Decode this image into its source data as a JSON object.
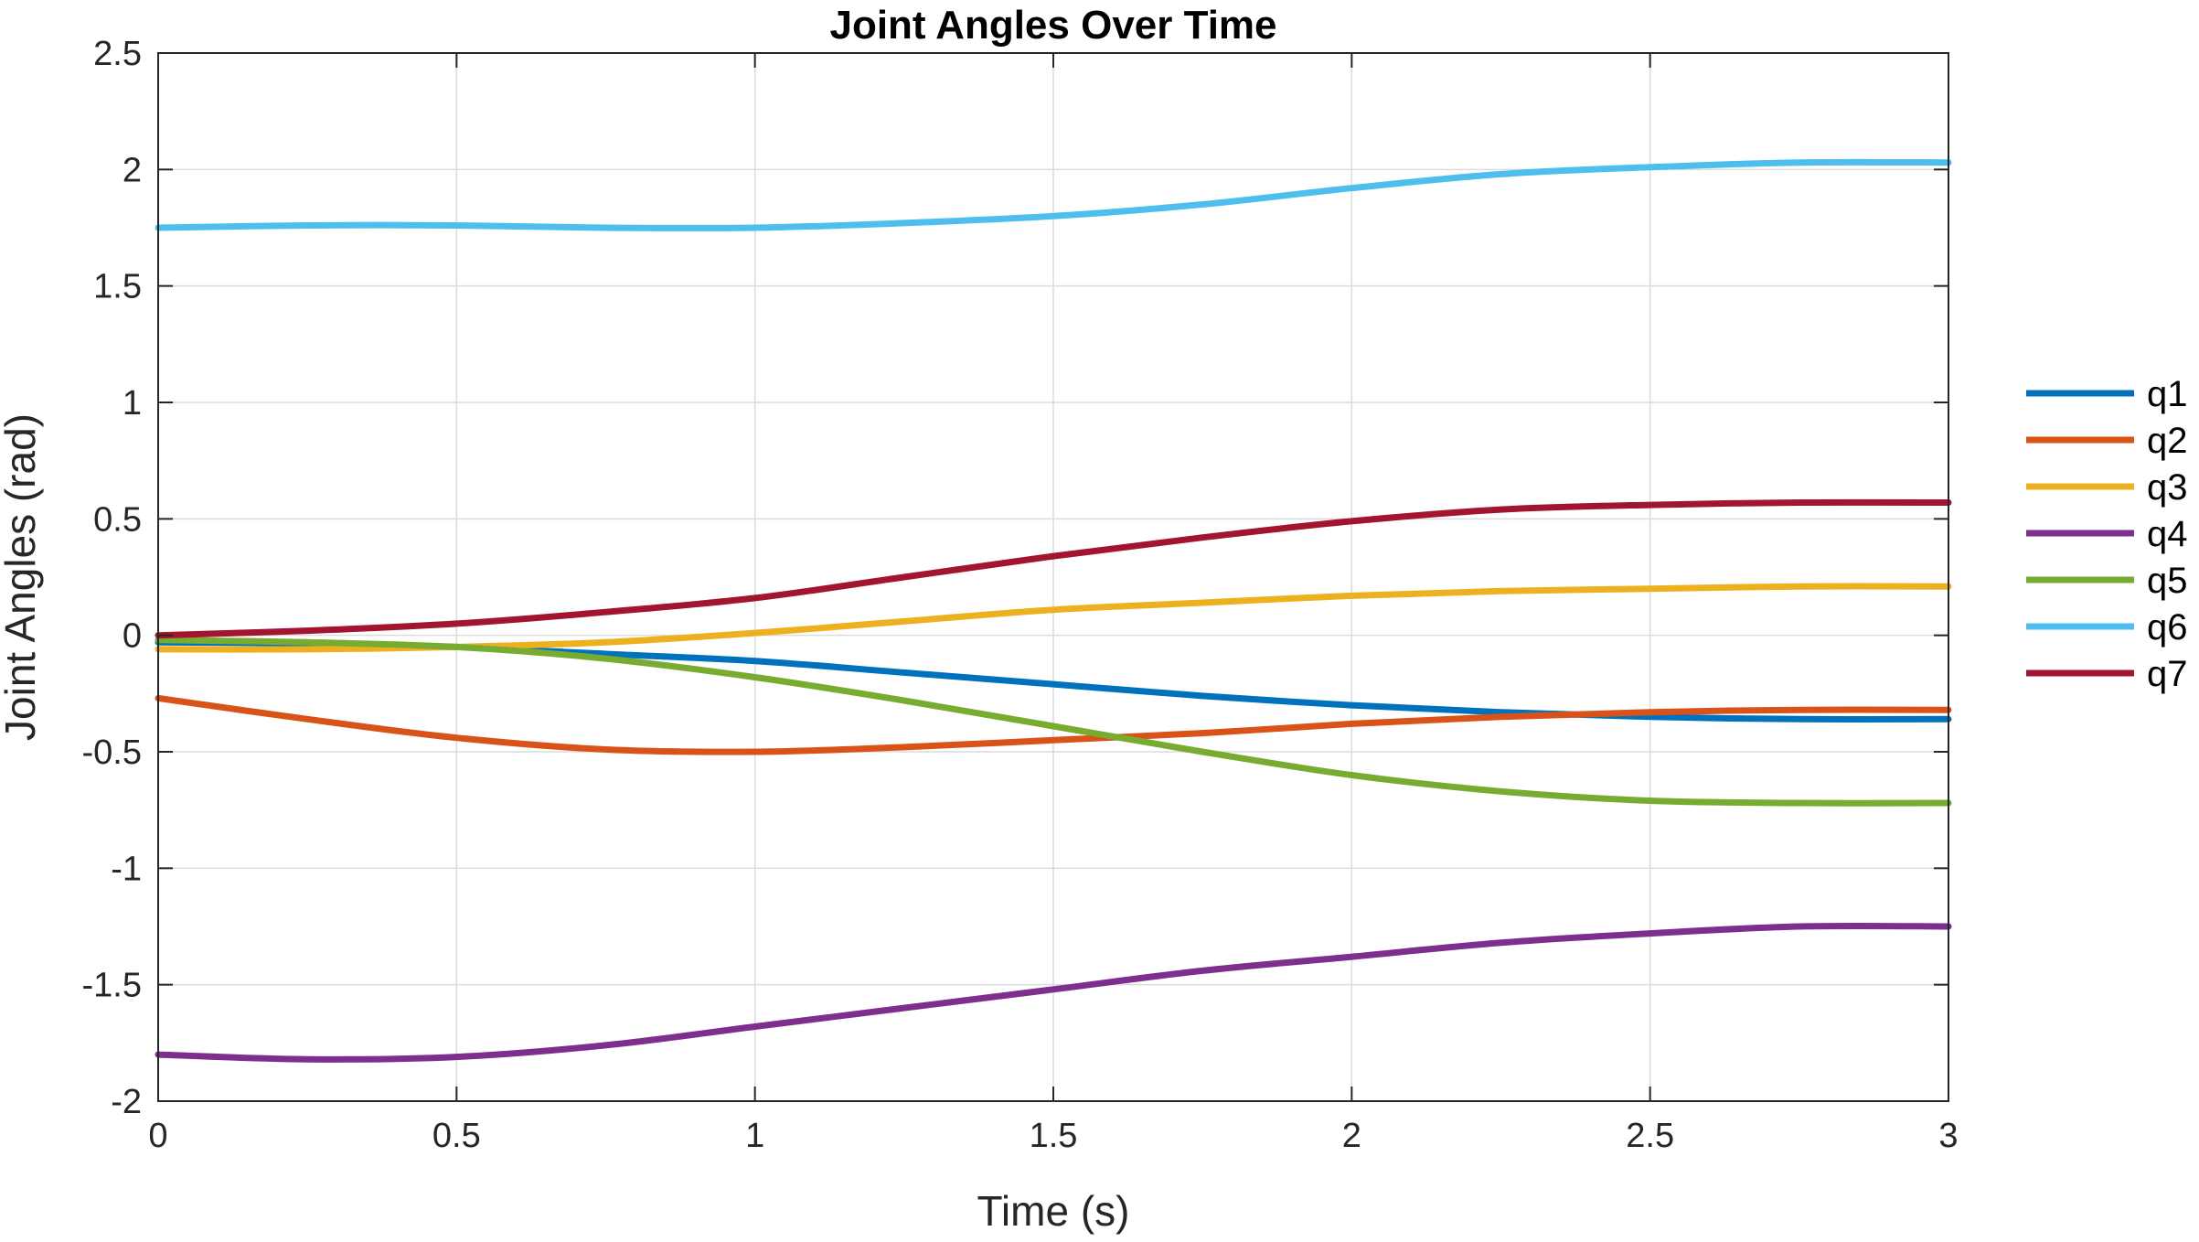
{
  "chart_data": {
    "type": "line",
    "title": "Joint Angles Over Time",
    "xlabel": "Time (s)",
    "ylabel": "Joint Angles (rad)",
    "xlim": [
      0,
      3
    ],
    "ylim": [
      -2,
      2.5
    ],
    "xticks": [
      0,
      0.5,
      1,
      1.5,
      2,
      2.5,
      3
    ],
    "xtick_labels": [
      "0",
      "0.5",
      "1",
      "1.5",
      "2",
      "2.5",
      "3"
    ],
    "yticks": [
      -2,
      -1.5,
      -1,
      -0.5,
      0,
      0.5,
      1,
      1.5,
      2,
      2.5
    ],
    "ytick_labels": [
      "-2",
      "-1.5",
      "-1",
      "-0.5",
      "0",
      "0.5",
      "1",
      "1.5",
      "2",
      "2.5"
    ],
    "grid": true,
    "legend_position": "outside-right",
    "x": [
      0,
      0.25,
      0.5,
      0.75,
      1,
      1.25,
      1.5,
      1.75,
      2,
      2.25,
      2.5,
      2.75,
      3
    ],
    "series": [
      {
        "name": "q1",
        "color": "#0072BD",
        "values": [
          -0.03,
          -0.035,
          -0.05,
          -0.08,
          -0.11,
          -0.16,
          -0.21,
          -0.26,
          -0.3,
          -0.33,
          -0.35,
          -0.36,
          -0.36
        ]
      },
      {
        "name": "q2",
        "color": "#D95319",
        "values": [
          -0.27,
          -0.36,
          -0.44,
          -0.49,
          -0.5,
          -0.48,
          -0.45,
          -0.42,
          -0.38,
          -0.35,
          -0.33,
          -0.32,
          -0.32
        ]
      },
      {
        "name": "q3",
        "color": "#EDB120",
        "values": [
          -0.06,
          -0.06,
          -0.05,
          -0.03,
          0.01,
          0.06,
          0.11,
          0.14,
          0.17,
          0.19,
          0.2,
          0.21,
          0.21
        ]
      },
      {
        "name": "q4",
        "color": "#7E2F8E",
        "values": [
          -1.8,
          -1.82,
          -1.81,
          -1.76,
          -1.68,
          -1.6,
          -1.52,
          -1.44,
          -1.38,
          -1.32,
          -1.28,
          -1.25,
          -1.25
        ]
      },
      {
        "name": "q5",
        "color": "#77AC30",
        "values": [
          -0.02,
          -0.03,
          -0.05,
          -0.1,
          -0.18,
          -0.28,
          -0.39,
          -0.5,
          -0.6,
          -0.67,
          -0.71,
          -0.72,
          -0.72
        ]
      },
      {
        "name": "q6",
        "color": "#4DBEEE",
        "values": [
          1.75,
          1.76,
          1.76,
          1.75,
          1.75,
          1.77,
          1.8,
          1.85,
          1.92,
          1.98,
          2.01,
          2.03,
          2.03
        ]
      },
      {
        "name": "q7",
        "color": "#A2142F",
        "values": [
          0.0,
          0.02,
          0.05,
          0.1,
          0.16,
          0.25,
          0.34,
          0.42,
          0.49,
          0.54,
          0.56,
          0.57,
          0.57
        ]
      }
    ]
  }
}
